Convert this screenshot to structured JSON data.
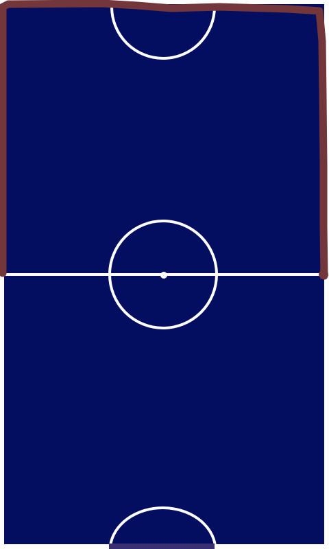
{
  "game": {
    "colors": {
      "background": "#ffffff",
      "pitch": "#030e61",
      "line": "#ffffff",
      "drawn_stroke": "#73363a",
      "goal": "#3a2f72"
    }
  }
}
